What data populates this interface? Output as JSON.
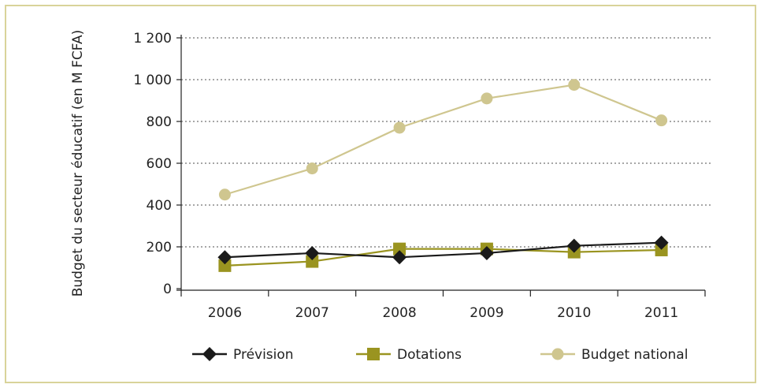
{
  "chart_data": {
    "type": "line",
    "title": "",
    "xlabel": "",
    "ylabel": "Budget du secteur éducatif (en M FCFA)",
    "categories": [
      "2006",
      "2007",
      "2008",
      "2009",
      "2010",
      "2011"
    ],
    "y_ticks": [
      "0",
      "200",
      "400",
      "600",
      "800",
      "1 000",
      "1 200"
    ],
    "y_tick_values": [
      0,
      200,
      400,
      600,
      800,
      1000,
      1200
    ],
    "ylim": [
      0,
      1200
    ],
    "grid": "horizontal dotted",
    "legend_position": "bottom",
    "series": [
      {
        "name": "Prévision",
        "values": [
          150,
          170,
          150,
          170,
          205,
          220
        ],
        "color": "#1a1a1a",
        "marker": "diamond"
      },
      {
        "name": "Dotations",
        "values": [
          110,
          130,
          190,
          190,
          175,
          185
        ],
        "color": "#9a9420",
        "marker": "square"
      },
      {
        "name": "Budget national",
        "values": [
          450,
          575,
          770,
          910,
          975,
          805
        ],
        "color": "#cfc68f",
        "marker": "circle"
      }
    ]
  }
}
